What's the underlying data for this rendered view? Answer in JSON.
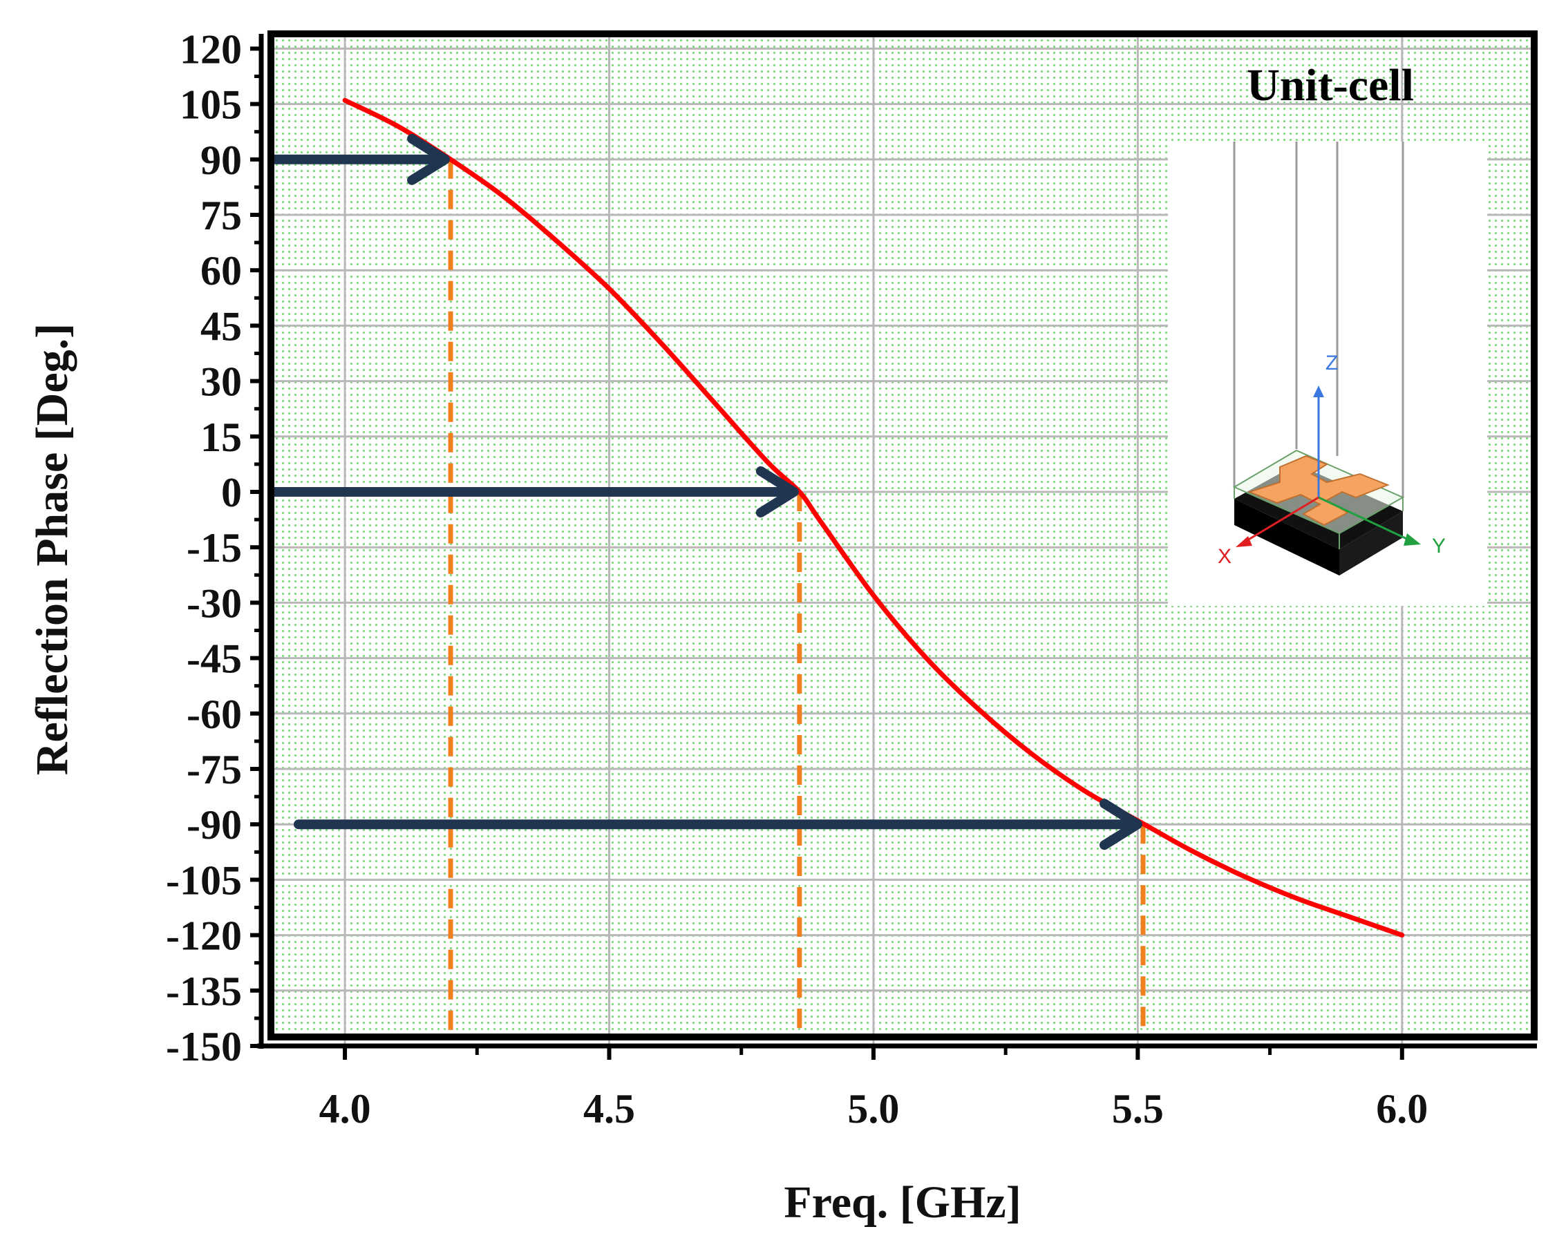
{
  "chart_data": {
    "type": "line",
    "xlabel": "Freq. [GHz]",
    "ylabel": "Reflection Phase [Deg.]",
    "xlim": [
      3.86,
      6.25
    ],
    "ylim": [
      -150,
      124
    ],
    "x_ticks": [
      "4.0",
      "4.5",
      "5.0",
      "5.5",
      "6.0"
    ],
    "y_ticks": [
      "120",
      "105",
      "90",
      "75",
      "60",
      "45",
      "30",
      "15",
      "0",
      "-15",
      "-30",
      "-45",
      "-60",
      "-75",
      "-90",
      "-105",
      "-120",
      "-135",
      "-150"
    ],
    "grid": true,
    "series": [
      {
        "color": "#ff0000",
        "x": [
          4.0,
          4.1,
          4.2,
          4.3,
          4.4,
          4.5,
          4.6,
          4.7,
          4.8,
          4.86,
          4.9,
          5.0,
          5.1,
          5.2,
          5.3,
          5.4,
          5.5,
          5.6,
          5.7,
          5.8,
          5.9,
          6.0
        ],
        "y": [
          106,
          99,
          90,
          80,
          68,
          55,
          40,
          24,
          8,
          0,
          -8,
          -28,
          -45,
          -59,
          -71,
          -81,
          -89,
          -97,
          -104,
          -110,
          -115,
          -120
        ]
      }
    ],
    "annotations": {
      "marker_color": "#ee8020",
      "arrow_color": "#1f3550",
      "markers": [
        {
          "x": 4.2,
          "y": 90
        },
        {
          "x": 4.86,
          "y": 0
        },
        {
          "x": 5.51,
          "y": -90
        }
      ]
    },
    "inset": {
      "title": "Unit-cell",
      "axes": {
        "x": "X",
        "y": "Y",
        "z": "Z"
      },
      "colors": {
        "x": "#e02020",
        "y": "#20a040",
        "z": "#3a78e0",
        "patch": "#f4a460",
        "ground": "#111111"
      }
    }
  }
}
